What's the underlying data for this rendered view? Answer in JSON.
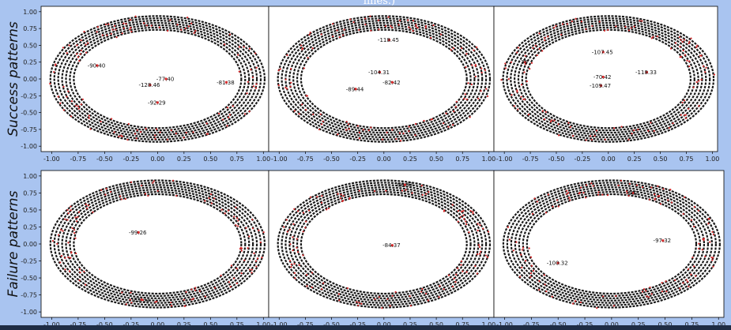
{
  "top_caption": "lines.)",
  "row_labels": [
    "Success patterns",
    "Failure patterns"
  ],
  "colors": {
    "background": "#a9c4f0",
    "panel": "#ffffff",
    "ring_text": "#000000",
    "point": "#d62728"
  },
  "chart_data": [
    {
      "type": "scatter",
      "row": "Success patterns",
      "xlim": [
        -1.1,
        1.05
      ],
      "ylim": [
        -1.08,
        1.08
      ],
      "xticks": [
        -1.0,
        -0.75,
        -0.5,
        -0.25,
        0.0,
        0.25,
        0.5,
        0.75,
        1.0
      ],
      "yticks": [
        1.0,
        0.75,
        0.5,
        0.25,
        0.0,
        -0.25,
        -0.5,
        -0.75,
        -1.0
      ],
      "ring": {
        "rx": 0.92,
        "ry": 0.85
      },
      "labeled_points": [
        {
          "x": -0.57,
          "y": 0.2,
          "label": "-90.40"
        },
        {
          "x": 0.08,
          "y": 0.0,
          "label": "-77.40"
        },
        {
          "x": -0.07,
          "y": -0.09,
          "label": "-128.46"
        },
        {
          "x": 0.65,
          "y": -0.05,
          "label": "-81.38"
        },
        {
          "x": 0.0,
          "y": -0.35,
          "label": "-92.29"
        }
      ]
    },
    {
      "type": "scatter",
      "row": "Success patterns",
      "xlim": [
        -1.1,
        1.05
      ],
      "ylim": [
        -1.08,
        1.08
      ],
      "xticks": [
        -1.0,
        -0.75,
        -0.5,
        -0.25,
        0.0,
        0.25,
        0.5,
        0.75,
        1.0
      ],
      "ring": {
        "rx": 0.92,
        "ry": 0.85
      },
      "labeled_points": [
        {
          "x": 0.05,
          "y": 0.58,
          "label": "-118.45"
        },
        {
          "x": -0.04,
          "y": 0.1,
          "label": "-104.31"
        },
        {
          "x": 0.08,
          "y": -0.05,
          "label": "-82.42"
        },
        {
          "x": -0.27,
          "y": -0.15,
          "label": "-89.44"
        }
      ]
    },
    {
      "type": "scatter",
      "row": "Success patterns",
      "xlim": [
        -1.1,
        1.05
      ],
      "ylim": [
        -1.08,
        1.08
      ],
      "xticks": [
        -1.0,
        -0.75,
        -0.5,
        -0.25,
        0.0,
        0.25,
        0.5,
        0.75,
        1.0
      ],
      "ring": {
        "rx": 0.92,
        "ry": 0.85
      },
      "labeled_points": [
        {
          "x": -0.8,
          "y": 0.25,
          "label": "39"
        },
        {
          "x": -0.05,
          "y": 0.4,
          "label": "-107.45"
        },
        {
          "x": -0.05,
          "y": 0.03,
          "label": "-70.42"
        },
        {
          "x": -0.07,
          "y": -0.1,
          "label": "-109.47"
        },
        {
          "x": 0.37,
          "y": 0.1,
          "label": "-118.33"
        }
      ]
    },
    {
      "type": "scatter",
      "row": "Failure patterns",
      "xlim": [
        -1.1,
        1.05
      ],
      "ylim": [
        -1.08,
        1.08
      ],
      "xticks": [
        -1.0,
        -0.75,
        -0.5,
        -0.25,
        0.0,
        0.25,
        0.5,
        0.75,
        1.0
      ],
      "yticks": [
        1.0,
        0.75,
        0.5,
        0.25,
        0.0,
        -0.25,
        -0.5,
        -0.75,
        -1.0
      ],
      "ring": {
        "rx": 0.92,
        "ry": 0.85
      },
      "labeled_points": [
        {
          "x": -0.18,
          "y": 0.17,
          "label": "-99.26"
        },
        {
          "x": -0.15,
          "y": -0.82,
          "label": "-85.32"
        }
      ]
    },
    {
      "type": "scatter",
      "row": "Failure patterns",
      "xlim": [
        -1.1,
        1.05
      ],
      "ylim": [
        -1.08,
        1.08
      ],
      "xticks": [
        -1.0,
        -0.75,
        -0.5,
        -0.25,
        0.0,
        0.25,
        0.5,
        0.75,
        1.0
      ],
      "ring": {
        "rx": 0.92,
        "ry": 0.85
      },
      "labeled_points": [
        {
          "x": 0.08,
          "y": -0.02,
          "label": "-84.37"
        },
        {
          "x": 0.2,
          "y": 0.87,
          "label": "-96.37"
        }
      ]
    },
    {
      "type": "scatter",
      "row": "Failure patterns",
      "xlim": [
        -1.1,
        1.05
      ],
      "ylim": [
        -1.08,
        1.08
      ],
      "xticks": [
        -1.0,
        -0.75,
        -0.5,
        -0.25,
        0.0,
        0.25,
        0.5,
        0.75,
        1.0
      ],
      "ring": {
        "rx": 0.92,
        "ry": 0.85
      },
      "labeled_points": [
        {
          "x": 0.48,
          "y": 0.05,
          "label": "-97.32"
        },
        {
          "x": -0.5,
          "y": -0.28,
          "label": "-100.32"
        },
        {
          "x": 0.2,
          "y": 0.75,
          "label": "-107"
        }
      ]
    }
  ]
}
